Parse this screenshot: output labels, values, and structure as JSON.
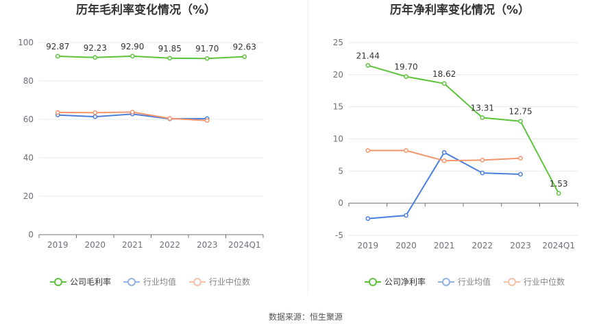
{
  "chart_data": [
    {
      "type": "line",
      "title": "历年毛利率变化情况（%）",
      "categories": [
        "2019",
        "2020",
        "2021",
        "2022",
        "2023",
        "2024Q1"
      ],
      "ylim": [
        0,
        100
      ],
      "yticks": [
        0,
        20,
        40,
        60,
        80,
        100
      ],
      "series": [
        {
          "name": "公司毛利率",
          "color": "#5cc33a",
          "values": [
            92.87,
            92.23,
            92.9,
            91.85,
            91.7,
            92.63
          ],
          "labels": [
            "92.87",
            "92.23",
            "92.90",
            "91.85",
            "91.70",
            "92.63"
          ]
        },
        {
          "name": "行业均值",
          "color": "#4a7fdb",
          "values": [
            62.3,
            61.4,
            62.8,
            60.3,
            60.4,
            null
          ]
        },
        {
          "name": "行业中位数",
          "color": "#f4956b",
          "values": [
            63.6,
            63.5,
            63.8,
            60.5,
            59.4,
            null
          ]
        }
      ]
    },
    {
      "type": "line",
      "title": "历年净利率变化情况（%）",
      "categories": [
        "2019",
        "2020",
        "2021",
        "2022",
        "2023",
        "2024Q1"
      ],
      "ylim": [
        -5,
        25
      ],
      "yticks": [
        -5,
        0,
        5,
        10,
        15,
        20,
        25
      ],
      "series": [
        {
          "name": "公司净利率",
          "color": "#5cc33a",
          "values": [
            21.44,
            19.7,
            18.62,
            13.31,
            12.75,
            1.53
          ],
          "labels": [
            "21.44",
            "19.70",
            "18.62",
            "13.31",
            "12.75",
            "1.53"
          ]
        },
        {
          "name": "行业均值",
          "color": "#4a7fdb",
          "values": [
            -2.4,
            -1.9,
            7.9,
            4.7,
            4.5,
            null
          ]
        },
        {
          "name": "行业中位数",
          "color": "#f4956b",
          "values": [
            8.2,
            8.2,
            6.6,
            6.7,
            7.0,
            null
          ]
        }
      ]
    }
  ],
  "source": "数据来源：恒生聚源"
}
